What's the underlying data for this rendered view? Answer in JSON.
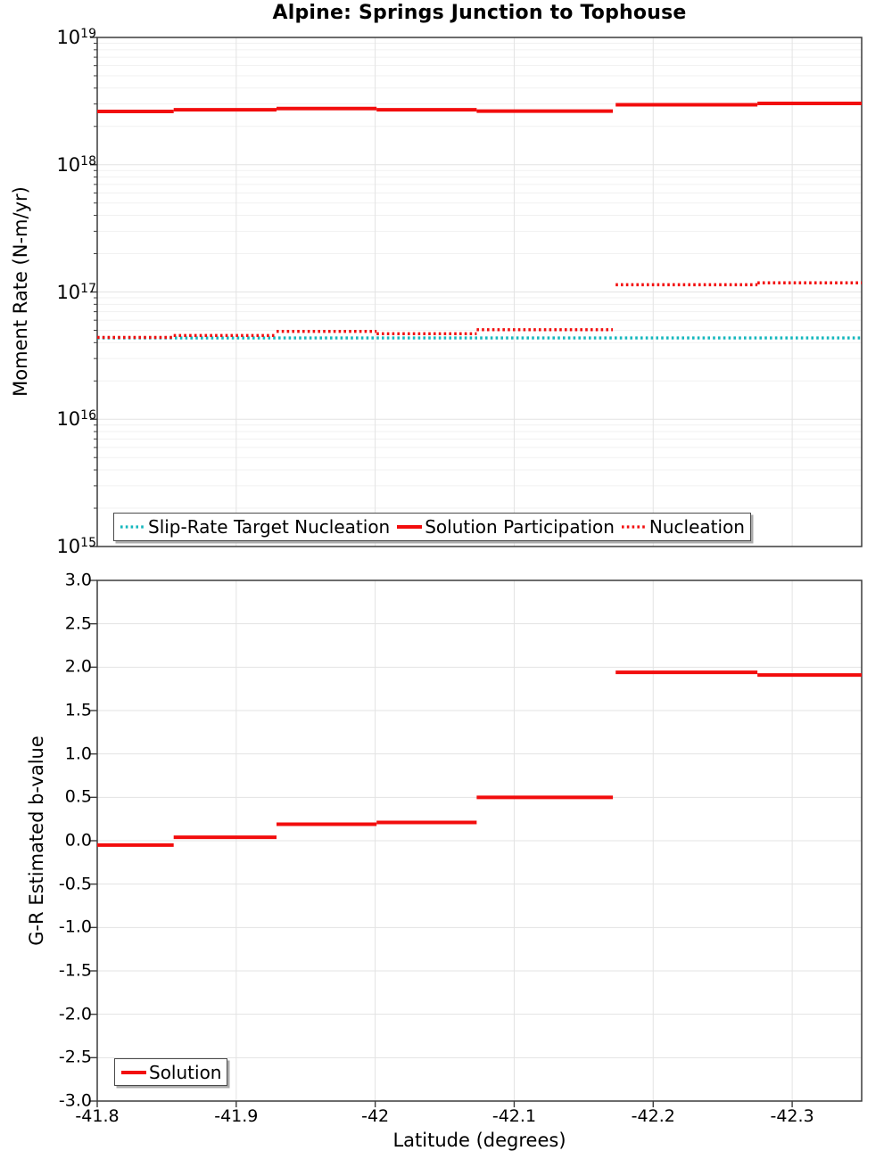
{
  "title": "Alpine: Springs Junction to Tophouse",
  "axes": {
    "xlabel": "Latitude (degrees)",
    "x_tick_labels": [
      "-41.8",
      "-41.9",
      "-42",
      "-42.1",
      "-42.2",
      "-42.3"
    ],
    "x_tick_values": [
      -41.8,
      -41.9,
      -42.0,
      -42.1,
      -42.2,
      -42.3
    ],
    "top_ylabel": "Moment Rate (N-m/yr)",
    "top_y_tick_exponents": [
      19,
      18,
      17,
      16,
      15
    ],
    "bottom_ylabel": "G-R Estimated b-value",
    "bottom_y_tick_labels": [
      "3.0",
      "2.5",
      "2.0",
      "1.5",
      "1.0",
      "0.5",
      "0.0",
      "-0.5",
      "-1.0",
      "-1.5",
      "-2.0",
      "-2.5",
      "-3.0"
    ],
    "bottom_y_tick_values": [
      3.0,
      2.5,
      2.0,
      1.5,
      1.0,
      0.5,
      0.0,
      -0.5,
      -1.0,
      -1.5,
      -2.0,
      -2.5,
      -3.0
    ]
  },
  "colors": {
    "solution_red": "#f20d0d",
    "target_teal": "#15b7bd",
    "grid_major": "#e3e3e3",
    "grid_minor": "#f1f1f1",
    "frame": "#3c3c3c",
    "text": "#000000",
    "legend_border": "#4a4a4a"
  },
  "chart_data": [
    {
      "type": "line",
      "title": "Alpine: Springs Junction to Tophouse",
      "ylabel": "Moment Rate (N-m/yr)",
      "yscale": "log",
      "ylim": [
        1000000000000000.0,
        1e+19
      ],
      "xlim": [
        -41.8,
        -42.35
      ],
      "grid": true,
      "legend_position": "bottom-left",
      "series": [
        {
          "name": "Slip-Rate Target Nucleation",
          "style": "dotted",
          "color": "#15b7bd",
          "segments": [
            {
              "x": [
                -41.8,
                -42.35
              ],
              "y": 4.35e+16
            }
          ]
        },
        {
          "name": "Solution Participation",
          "style": "solid",
          "color": "#f20d0d",
          "segments": [
            {
              "x": [
                -41.8,
                -41.855
              ],
              "y": 2.62e+18
            },
            {
              "x": [
                -41.855,
                -41.929
              ],
              "y": 2.7e+18
            },
            {
              "x": [
                -41.929,
                -42.001
              ],
              "y": 2.76e+18
            },
            {
              "x": [
                -42.001,
                -42.073
              ],
              "y": 2.7e+18
            },
            {
              "x": [
                -42.073,
                -42.171
              ],
              "y": 2.64e+18
            },
            {
              "x": [
                -42.173,
                -42.275
              ],
              "y": 2.96e+18
            },
            {
              "x": [
                -42.275,
                -42.35
              ],
              "y": 3.03e+18
            }
          ]
        },
        {
          "name": "Nucleation",
          "style": "dotted",
          "color": "#f20d0d",
          "segments": [
            {
              "x": [
                -41.8,
                -41.855
              ],
              "y": 4.4e+16
            },
            {
              "x": [
                -41.855,
                -41.929
              ],
              "y": 4.55e+16
            },
            {
              "x": [
                -41.929,
                -42.001
              ],
              "y": 4.9e+16
            },
            {
              "x": [
                -42.001,
                -42.073
              ],
              "y": 4.7e+16
            },
            {
              "x": [
                -42.073,
                -42.171
              ],
              "y": 5.05e+16
            },
            {
              "x": [
                -42.173,
                -42.275
              ],
              "y": 1.14e+17
            },
            {
              "x": [
                -42.275,
                -42.35
              ],
              "y": 1.18e+17
            }
          ]
        }
      ]
    },
    {
      "type": "line",
      "xlabel": "Latitude (degrees)",
      "ylabel": "G-R Estimated b-value",
      "yscale": "linear",
      "ylim": [
        -3.0,
        3.0
      ],
      "xlim": [
        -41.8,
        -42.35
      ],
      "grid": true,
      "legend_position": "bottom-left",
      "series": [
        {
          "name": "Solution",
          "style": "solid",
          "color": "#f20d0d",
          "segments": [
            {
              "x": [
                -41.8,
                -41.855
              ],
              "y": -0.05
            },
            {
              "x": [
                -41.855,
                -41.929
              ],
              "y": 0.04
            },
            {
              "x": [
                -41.929,
                -42.001
              ],
              "y": 0.19
            },
            {
              "x": [
                -42.001,
                -42.073
              ],
              "y": 0.21
            },
            {
              "x": [
                -42.073,
                -42.171
              ],
              "y": 0.5
            },
            {
              "x": [
                -42.173,
                -42.275
              ],
              "y": 1.94
            },
            {
              "x": [
                -42.275,
                -42.35
              ],
              "y": 1.91
            }
          ]
        }
      ]
    }
  ]
}
